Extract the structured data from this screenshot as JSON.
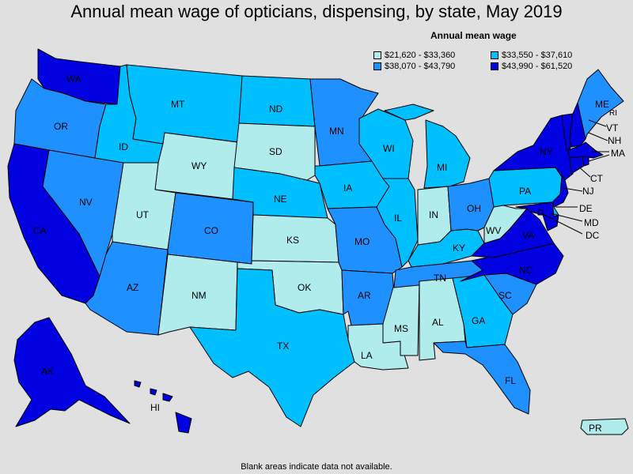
{
  "title": "Annual mean wage of opticians, dispensing, by state, May 2019",
  "legend": {
    "title": "Annual mean wage",
    "items": [
      {
        "label": "$21,620 - $33,360",
        "color": "#b0ecec"
      },
      {
        "label": "$33,550 - $37,610",
        "color": "#00bfff"
      },
      {
        "label": "$38,070 - $43,790",
        "color": "#1e90ff"
      },
      {
        "label": "$43,990 - $61,520",
        "color": "#0000e0"
      }
    ]
  },
  "footnote": "Blank areas indicate data not available.",
  "states": [
    {
      "code": "WA",
      "tier": 3
    },
    {
      "code": "OR",
      "tier": 2
    },
    {
      "code": "CA",
      "tier": 3
    },
    {
      "code": "NV",
      "tier": 2
    },
    {
      "code": "ID",
      "tier": 1
    },
    {
      "code": "MT",
      "tier": 1
    },
    {
      "code": "WY",
      "tier": 0
    },
    {
      "code": "UT",
      "tier": 0
    },
    {
      "code": "AZ",
      "tier": 2
    },
    {
      "code": "CO",
      "tier": 2
    },
    {
      "code": "NM",
      "tier": 0
    },
    {
      "code": "ND",
      "tier": 1
    },
    {
      "code": "SD",
      "tier": 0
    },
    {
      "code": "NE",
      "tier": 1
    },
    {
      "code": "KS",
      "tier": 0
    },
    {
      "code": "OK",
      "tier": 0
    },
    {
      "code": "TX",
      "tier": 1
    },
    {
      "code": "MN",
      "tier": 2
    },
    {
      "code": "IA",
      "tier": 1
    },
    {
      "code": "MO",
      "tier": 2
    },
    {
      "code": "AR",
      "tier": 2
    },
    {
      "code": "LA",
      "tier": 0
    },
    {
      "code": "WI",
      "tier": 1
    },
    {
      "code": "IL",
      "tier": 1
    },
    {
      "code": "MS",
      "tier": 0
    },
    {
      "code": "MI",
      "tier": 1
    },
    {
      "code": "IN",
      "tier": 0
    },
    {
      "code": "KY",
      "tier": 1
    },
    {
      "code": "TN",
      "tier": 2
    },
    {
      "code": "AL",
      "tier": 0
    },
    {
      "code": "OH",
      "tier": 2
    },
    {
      "code": "GA",
      "tier": 1
    },
    {
      "code": "FL",
      "tier": 2
    },
    {
      "code": "SC",
      "tier": 2
    },
    {
      "code": "NC",
      "tier": 3
    },
    {
      "code": "VA",
      "tier": 3
    },
    {
      "code": "WV",
      "tier": 0
    },
    {
      "code": "PA",
      "tier": 1
    },
    {
      "code": "NY",
      "tier": 3
    },
    {
      "code": "VT",
      "tier": 3
    },
    {
      "code": "NH",
      "tier": 3
    },
    {
      "code": "ME",
      "tier": 2
    },
    {
      "code": "MA",
      "tier": 3
    },
    {
      "code": "RI",
      "tier": 3
    },
    {
      "code": "CT",
      "tier": 3
    },
    {
      "code": "NJ",
      "tier": 3
    },
    {
      "code": "DE",
      "tier": 1
    },
    {
      "code": "MD",
      "tier": 3
    },
    {
      "code": "DC",
      "tier": 3
    },
    {
      "code": "AK",
      "tier": 3
    },
    {
      "code": "HI",
      "tier": 3
    },
    {
      "code": "PR",
      "tier": 0
    }
  ]
}
